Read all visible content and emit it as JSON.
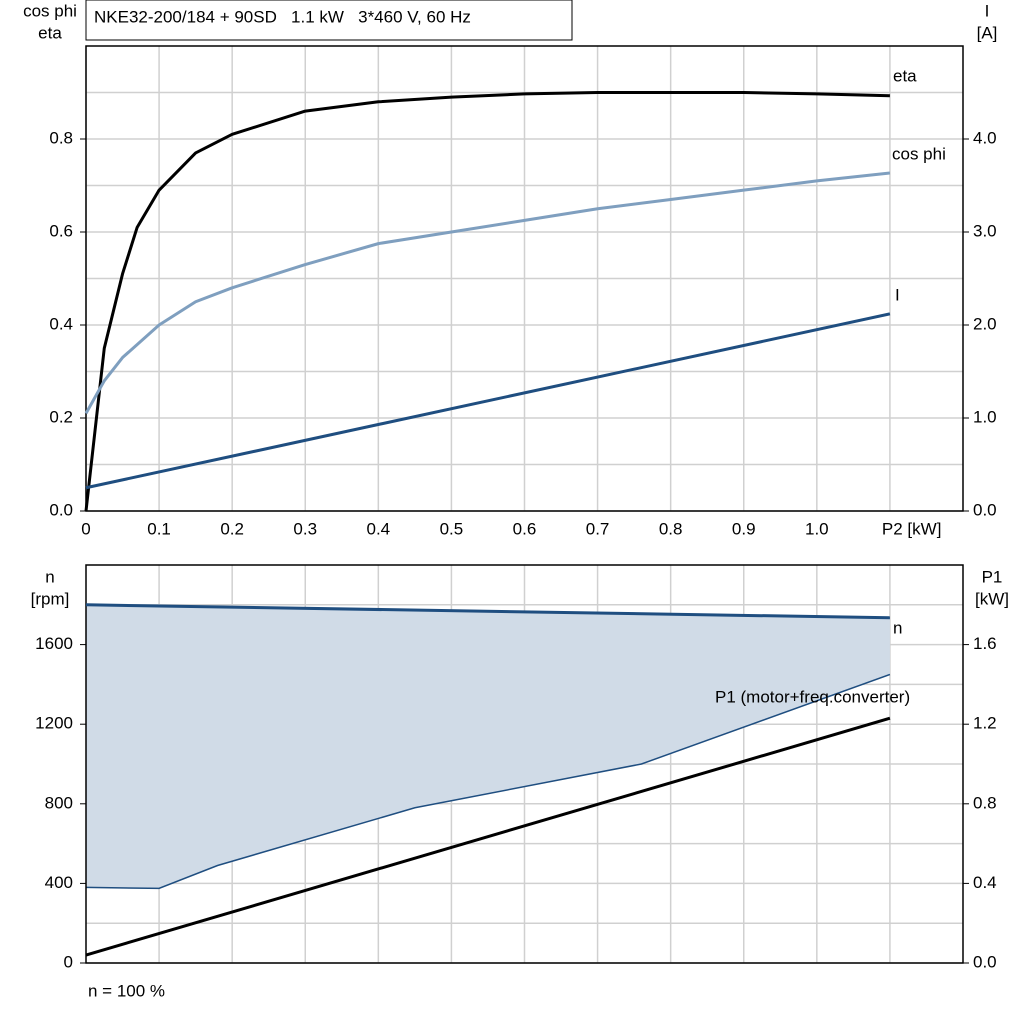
{
  "chart_data": [
    {
      "type": "line",
      "title": "NKE32-200/184 + 90SD   1.1 kW   3*460 V, 60 Hz",
      "ylabel": [
        "cos phi",
        "eta"
      ],
      "y2label": [
        "I",
        "[A]"
      ],
      "xlim": [
        0,
        1.2
      ],
      "xticks": [
        0,
        0.1,
        0.2,
        0.3,
        0.4,
        0.5,
        0.6,
        0.7,
        0.8,
        0.9,
        {
          "value": 1.0,
          "label": "1.0"
        },
        {
          "value": 1.1,
          "label": "P2 [kW]"
        }
      ],
      "ylim": [
        0,
        1.0
      ],
      "yticks": [
        {
          "value": 0,
          "label": "0.0"
        },
        0.2,
        0.4,
        0.6,
        0.8
      ],
      "yminorticks": [
        0.1,
        0.3,
        0.5,
        0.7,
        0.9
      ],
      "y2lim": [
        0,
        5.0
      ],
      "y2ticks": [
        {
          "value": 0,
          "label": "0.0"
        },
        {
          "value": 1,
          "label": "1.0"
        },
        {
          "value": 2,
          "label": "2.0"
        },
        {
          "value": 3,
          "label": "3.0"
        },
        {
          "value": 4,
          "label": "4.0"
        }
      ],
      "grid": true,
      "series": [
        {
          "name": "eta",
          "color": "#000000",
          "x": [
            0,
            0.025,
            0.05,
            0.07,
            0.1,
            0.15,
            0.2,
            0.3,
            0.4,
            0.5,
            0.6,
            0.7,
            0.8,
            0.9,
            1.0,
            1.1
          ],
          "values": [
            0,
            0.35,
            0.51,
            0.61,
            0.69,
            0.77,
            0.81,
            0.86,
            0.88,
            0.89,
            0.897,
            0.9,
            0.9,
            0.9,
            0.897,
            0.893
          ]
        },
        {
          "name": "cos phi",
          "color": "#7f9fbf",
          "x": [
            0,
            0.025,
            0.05,
            0.1,
            0.15,
            0.2,
            0.3,
            0.4,
            0.5,
            0.6,
            0.7,
            0.8,
            0.9,
            1.0,
            1.1
          ],
          "values": [
            0.21,
            0.28,
            0.33,
            0.4,
            0.45,
            0.48,
            0.53,
            0.575,
            0.6,
            0.625,
            0.65,
            0.67,
            0.69,
            0.71,
            0.727
          ]
        },
        {
          "name": "I",
          "color": "#1f4e80",
          "axis": "y2",
          "x": [
            0,
            1.1
          ],
          "values": [
            0.25,
            2.12
          ]
        }
      ]
    },
    {
      "type": "line",
      "ylabel": [
        "n",
        "[rpm]"
      ],
      "y2label": [
        "P1",
        "[kW]"
      ],
      "xlim": [
        0,
        1.2
      ],
      "xgrid": [
        0.1,
        0.2,
        0.3,
        0.4,
        0.5,
        0.6,
        0.7,
        0.8,
        0.9,
        1.0,
        1.1
      ],
      "ylim": [
        0,
        2000
      ],
      "yticks": [
        0,
        400,
        800,
        1200,
        1600
      ],
      "yminorticks": [
        200,
        600,
        1000,
        1400,
        1800
      ],
      "y2lim": [
        0,
        2.0
      ],
      "y2ticks": [
        {
          "value": 0,
          "label": "0.0"
        },
        0.4,
        0.8,
        1.2,
        1.6
      ],
      "grid": true,
      "range": {
        "color": "#d0dbe7",
        "x": [
          0,
          0.1,
          0.18,
          0.45,
          0.76,
          1.1
        ],
        "values": [
          380,
          375,
          490,
          780,
          1000,
          1450
        ]
      },
      "series": [
        {
          "name": "n",
          "color": "#1f4e80",
          "x": [
            0,
            1.1
          ],
          "values": [
            1800,
            1735
          ]
        },
        {
          "name": "P1 (motor+freq.converter)",
          "color": "#000000",
          "axis": "y2",
          "x": [
            0,
            1.1
          ],
          "values": [
            0.04,
            1.23
          ]
        }
      ],
      "footnote": "n = 100 %"
    }
  ]
}
